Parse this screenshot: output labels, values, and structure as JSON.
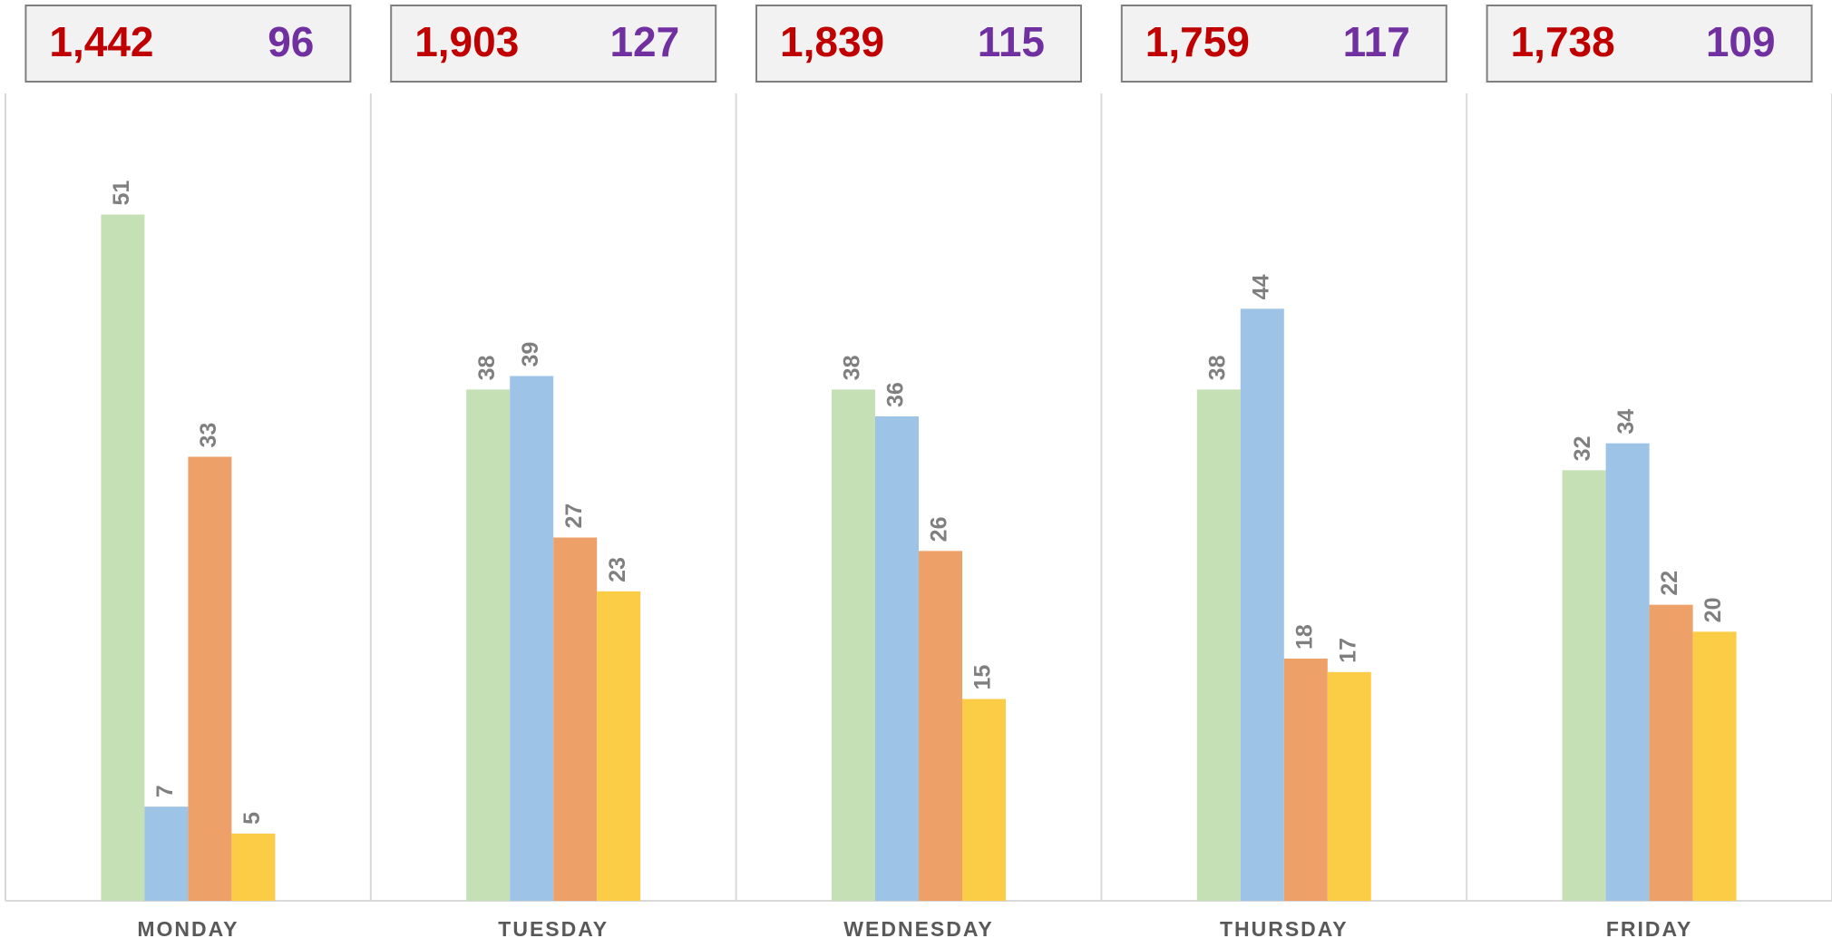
{
  "chart_data": {
    "type": "bar",
    "categories": [
      "MONDAY",
      "TUESDAY",
      "WEDNESDAY",
      "THURSDAY",
      "FRIDAY"
    ],
    "primary_totals": [
      "1,442",
      "1,903",
      "1,839",
      "1,759",
      "1,738"
    ],
    "secondary_totals": [
      "96",
      "127",
      "115",
      "117",
      "109"
    ],
    "primary_color": "#c00000",
    "secondary_color": "#7030a0",
    "series": [
      {
        "color": "#c5e0b4",
        "values": [
          51,
          38,
          38,
          38,
          32
        ]
      },
      {
        "color": "#9dc3e6",
        "values": [
          7,
          39,
          36,
          44,
          34
        ]
      },
      {
        "color": "#eda067",
        "values": [
          33,
          27,
          26,
          18,
          22
        ]
      },
      {
        "color": "#fbcd46",
        "values": [
          5,
          23,
          15,
          17,
          20
        ]
      }
    ],
    "ylim": [
      0,
      60
    ]
  }
}
